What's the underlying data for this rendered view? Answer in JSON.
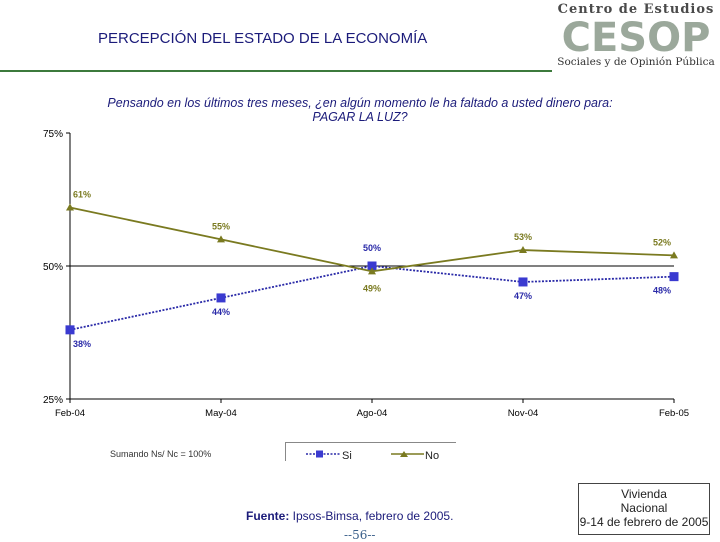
{
  "header": {
    "title": "PERCEPCIÓN DEL ESTADO DE LA ECONOMÍA",
    "logo": {
      "line1": "Centro de Estudios",
      "acronym": "CESOP",
      "line3": "Sociales y de Opinión Pública"
    }
  },
  "question": {
    "line1": "Pensando en los últimos tres meses, ¿en algún momento le ha faltado a usted dinero para:",
    "line2": "PAGAR LA LUZ?"
  },
  "chart_data": {
    "type": "line",
    "categories": [
      "Feb-04",
      "May-04",
      "Ago-04",
      "Nov-04",
      "Feb-05"
    ],
    "series": [
      {
        "name": "Si",
        "values": [
          38,
          44,
          50,
          47,
          48
        ],
        "labels": [
          "38%",
          "44%",
          "50%",
          "47%",
          "48%"
        ],
        "color": "#2a2aa8"
      },
      {
        "name": "No",
        "values": [
          61,
          55,
          49,
          53,
          52
        ],
        "labels": [
          "61%",
          "55%",
          "49%",
          "53%",
          "52%"
        ],
        "color": "#7a7a20"
      }
    ],
    "ylim": [
      25,
      75
    ],
    "yticks": [
      25,
      50,
      75
    ],
    "ytick_labels": [
      "25%",
      "50%",
      "75%"
    ],
    "legend_position": "bottom"
  },
  "footer": {
    "note": "Sumando Ns/ Nc = 100%",
    "source_label": "Fuente:",
    "source_text": " Ipsos-Bimsa, febrero de 2005.",
    "page_number": "--56--",
    "box_line1": "Vivienda",
    "box_line2": "Nacional",
    "box_line3": "9-14 de febrero de 2005"
  }
}
